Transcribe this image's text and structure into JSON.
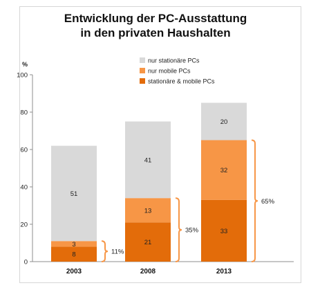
{
  "chart_data": {
    "type": "bar",
    "stacked": true,
    "title_line1": "Entwicklung der PC-Ausstattung",
    "title_line2": "in den privaten Haushalten",
    "ylabel": "%",
    "ylim": [
      0,
      100
    ],
    "yticks": [
      0,
      20,
      40,
      60,
      80,
      100
    ],
    "categories": [
      "2003",
      "2008",
      "2013"
    ],
    "series": [
      {
        "name": "stationäre & mobile PCs",
        "color": "#e36c0a",
        "values": [
          8,
          21,
          33
        ]
      },
      {
        "name": "nur mobile PCs",
        "color": "#f79646",
        "values": [
          3,
          13,
          32
        ]
      },
      {
        "name": "nur stationäre PCs",
        "color": "#d9d9d9",
        "values": [
          51,
          41,
          20
        ]
      }
    ],
    "legend_order": [
      "nur stationäre PCs",
      "nur mobile PCs",
      "stationäre & mobile PCs"
    ],
    "legend_position": "top-center",
    "bracket_labels": [
      "11%",
      "35%",
      "65%"
    ],
    "bracket_color": "#f79646",
    "grid": false
  }
}
